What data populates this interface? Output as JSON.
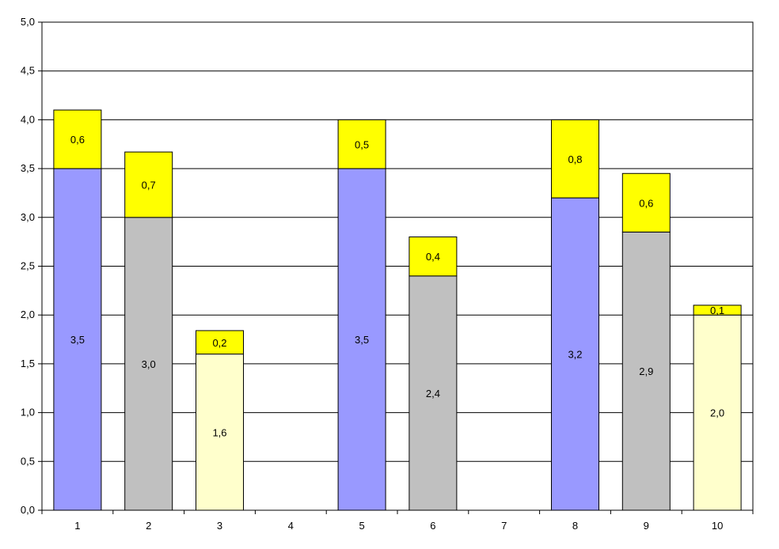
{
  "chart_data": {
    "type": "bar",
    "stacked": true,
    "categories": [
      "1",
      "2",
      "3",
      "4",
      "5",
      "6",
      "7",
      "8",
      "9",
      "10"
    ],
    "ylim": [
      0,
      5
    ],
    "yticks": [
      "0,0",
      "0,5",
      "1,0",
      "1,5",
      "2,0",
      "2,5",
      "3,0",
      "3,5",
      "4,0",
      "4,5",
      "5,0"
    ],
    "ylabel": "",
    "grid": true,
    "legend": "none",
    "bars": [
      {
        "category": "1",
        "base": 3.5,
        "base_label": "3,5",
        "base_color": "#9999ff",
        "top": 0.6,
        "top_label": "0,6"
      },
      {
        "category": "2",
        "base": 3.0,
        "base_label": "3,0",
        "base_color": "#c0c0c0",
        "top": 0.67,
        "top_label": "0,7"
      },
      {
        "category": "3",
        "base": 1.6,
        "base_label": "1,6",
        "base_color": "#ffffcc",
        "top": 0.24,
        "top_label": "0,2"
      },
      {
        "category": "4",
        "base": 0,
        "base_label": "",
        "base_color": "#ffffff",
        "top": 0,
        "top_label": ""
      },
      {
        "category": "5",
        "base": 3.5,
        "base_label": "3,5",
        "base_color": "#9999ff",
        "top": 0.5,
        "top_label": "0,5"
      },
      {
        "category": "6",
        "base": 2.4,
        "base_label": "2,4",
        "base_color": "#c0c0c0",
        "top": 0.4,
        "top_label": "0,4"
      },
      {
        "category": "7",
        "base": 0,
        "base_label": "",
        "base_color": "#ffffff",
        "top": 0,
        "top_label": ""
      },
      {
        "category": "8",
        "base": 3.2,
        "base_label": "3,2",
        "base_color": "#9999ff",
        "top": 0.8,
        "top_label": "0,8"
      },
      {
        "category": "9",
        "base": 2.85,
        "base_label": "2,9",
        "base_color": "#c0c0c0",
        "top": 0.6,
        "top_label": "0,6"
      },
      {
        "category": "10",
        "base": 2.0,
        "base_label": "2,0",
        "base_color": "#ffffcc",
        "top": 0.1,
        "top_label": "0,1"
      }
    ],
    "top_color": "#ffff00"
  }
}
